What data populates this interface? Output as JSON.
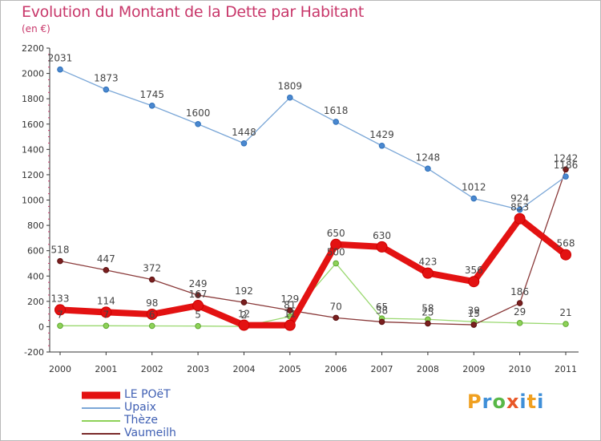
{
  "title": "Evolution du Montant de la Dette par Habitant",
  "subtitle": "(en €)",
  "logo": [
    "P",
    "r",
    "o",
    "x",
    "i",
    "t",
    "i"
  ],
  "logo_colors": [
    "#f0a020",
    "#3f8fd8",
    "#58b847",
    "#e85828",
    "#3f8fd8",
    "#f0a020",
    "#3f8fd8"
  ],
  "chart_data": {
    "type": "line",
    "x": [
      2000,
      2001,
      2002,
      2003,
      2004,
      2005,
      2006,
      2007,
      2008,
      2009,
      2010,
      2011
    ],
    "ylim": [
      -200,
      2200
    ],
    "yticks": [
      -200,
      0,
      200,
      400,
      600,
      800,
      1000,
      1200,
      1400,
      1600,
      1800,
      2000,
      2200
    ],
    "grid": false,
    "legend_position": "bottom-left",
    "series": [
      {
        "name": "LE POëT",
        "color": "#e31212",
        "values": [
          133,
          114,
          98,
          167,
          12,
          11,
          650,
          630,
          423,
          356,
          853,
          568
        ],
        "labels": [
          "133",
          "114",
          "98",
          "167",
          "12",
          "11",
          "650",
          "630",
          "423",
          "356",
          "853",
          "568"
        ]
      },
      {
        "name": "Upaix",
        "color": "#7ba7d7",
        "values": [
          2031,
          1873,
          1745,
          1600,
          1448,
          1809,
          1618,
          1429,
          1248,
          1012,
          924,
          1186
        ],
        "labels": [
          "2031",
          "1873",
          "1745",
          "1600",
          "1448",
          "1809",
          "1618",
          "1429",
          "1248",
          "1012",
          "924",
          "1186"
        ]
      },
      {
        "name": "Thèze",
        "color": "#8ed258",
        "values": [
          7,
          7,
          6,
          5,
          2,
          81,
          500,
          65,
          58,
          39,
          29,
          21
        ],
        "labels": [
          "7",
          "7",
          "6",
          "5",
          "2",
          "81",
          "500",
          "65",
          "58",
          "39",
          "29",
          "21"
        ]
      },
      {
        "name": "Vaumeilh",
        "color": "#7a2a2a",
        "values": [
          518,
          447,
          372,
          249,
          192,
          129,
          70,
          38,
          25,
          15,
          186,
          1242
        ],
        "labels": [
          "518",
          "447",
          "372",
          "249",
          "192",
          "129",
          "70",
          "38",
          "25",
          "15",
          "186",
          "1242"
        ]
      }
    ]
  }
}
